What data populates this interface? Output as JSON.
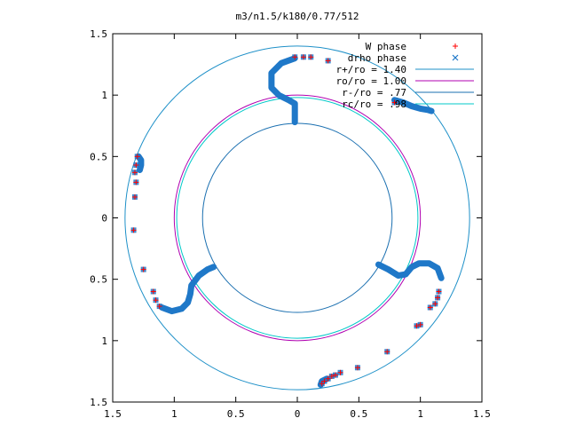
{
  "chart_data": {
    "type": "scatter",
    "title": "m3/n1.5/k180/0.77/512",
    "xlabel": "",
    "ylabel": "",
    "xlim": [
      -1.5,
      1.5
    ],
    "ylim": [
      -1.5,
      1.5
    ],
    "x_ticks": [
      {
        "value": -1.5,
        "label": "1.5"
      },
      {
        "value": -1.0,
        "label": "1"
      },
      {
        "value": -0.5,
        "label": "0.5"
      },
      {
        "value": 0.0,
        "label": "0"
      },
      {
        "value": 0.5,
        "label": "0.5"
      },
      {
        "value": 1.0,
        "label": "1"
      },
      {
        "value": 1.5,
        "label": "1.5"
      }
    ],
    "y_ticks": [
      {
        "value": 1.5,
        "label": "1.5"
      },
      {
        "value": 1.0,
        "label": "1"
      },
      {
        "value": 0.5,
        "label": "0.5"
      },
      {
        "value": 0.0,
        "label": "0"
      },
      {
        "value": -0.5,
        "label": "0.5"
      },
      {
        "value": -1.0,
        "label": "1"
      },
      {
        "value": -1.5,
        "label": "1.5"
      }
    ],
    "grid": false,
    "legend_position": "top-right",
    "circles": [
      {
        "name": "r+/ro = 1.40",
        "radius": 1.4,
        "color": "#1e90c8"
      },
      {
        "name": "ro/ro = 1.00",
        "radius": 1.0,
        "color": "#b000b0"
      },
      {
        "name": "r-/ro = .77",
        "radius": 0.77,
        "color": "#1a6fb0"
      },
      {
        "name": "rc/ro = .98",
        "radius": 0.98,
        "color": "#00c8c8"
      }
    ],
    "series": [
      {
        "name": "W phase",
        "marker": "plus",
        "color": "#ff0000",
        "points": [
          [
            -0.02,
            1.31
          ],
          [
            0.05,
            1.31
          ],
          [
            0.11,
            1.31
          ],
          [
            0.25,
            1.28
          ],
          [
            -1.3,
            0.5
          ],
          [
            -1.31,
            0.43
          ],
          [
            -1.32,
            0.37
          ],
          [
            -1.31,
            0.29
          ],
          [
            -1.32,
            0.17
          ],
          [
            -1.33,
            -0.1
          ],
          [
            -1.25,
            -0.42
          ],
          [
            -1.17,
            -0.6
          ],
          [
            -1.15,
            -0.67
          ],
          [
            -1.12,
            -0.72
          ],
          [
            0.79,
            0.94
          ],
          [
            1.15,
            -0.6
          ],
          [
            1.14,
            -0.65
          ],
          [
            1.12,
            -0.7
          ],
          [
            1.08,
            -0.73
          ],
          [
            1.0,
            -0.87
          ],
          [
            0.97,
            -0.88
          ],
          [
            0.73,
            -1.09
          ],
          [
            0.49,
            -1.22
          ],
          [
            0.35,
            -1.26
          ],
          [
            0.31,
            -1.28
          ],
          [
            0.28,
            -1.29
          ],
          [
            0.25,
            -1.31
          ],
          [
            0.22,
            -1.33
          ],
          [
            0.2,
            -1.35
          ]
        ]
      },
      {
        "name": "drho phase",
        "marker": "x",
        "color": "#1f78c8",
        "points": [
          [
            -0.02,
            1.31
          ],
          [
            0.05,
            1.31
          ],
          [
            0.11,
            1.31
          ],
          [
            0.25,
            1.28
          ],
          [
            -1.3,
            0.5
          ],
          [
            -1.31,
            0.43
          ],
          [
            -1.32,
            0.37
          ],
          [
            -1.31,
            0.29
          ],
          [
            -1.32,
            0.17
          ],
          [
            -1.33,
            -0.1
          ],
          [
            -1.25,
            -0.42
          ],
          [
            -1.17,
            -0.6
          ],
          [
            -1.15,
            -0.67
          ],
          [
            -1.12,
            -0.72
          ],
          [
            0.79,
            0.94
          ],
          [
            1.15,
            -0.6
          ],
          [
            1.14,
            -0.65
          ],
          [
            1.12,
            -0.7
          ],
          [
            1.08,
            -0.73
          ],
          [
            1.0,
            -0.87
          ],
          [
            0.97,
            -0.88
          ],
          [
            0.73,
            -1.09
          ],
          [
            0.49,
            -1.22
          ],
          [
            0.35,
            -1.26
          ],
          [
            0.31,
            -1.28
          ],
          [
            0.28,
            -1.29
          ],
          [
            0.25,
            -1.31
          ],
          [
            0.22,
            -1.33
          ],
          [
            0.2,
            -1.35
          ]
        ],
        "dense_curves": [
          [
            [
              -0.02,
              1.3
            ],
            [
              -0.13,
              1.26
            ],
            [
              -0.21,
              1.18
            ],
            [
              -0.21,
              1.06
            ],
            [
              -0.15,
              1.0
            ],
            [
              -0.07,
              0.96
            ],
            [
              -0.02,
              0.93
            ],
            [
              -0.02,
              0.86
            ],
            [
              -0.02,
              0.78
            ]
          ],
          [
            [
              0.79,
              0.96
            ],
            [
              0.86,
              0.94
            ],
            [
              0.93,
              0.91
            ],
            [
              1.0,
              0.89
            ],
            [
              1.06,
              0.88
            ],
            [
              1.09,
              0.87
            ]
          ],
          [
            [
              -1.29,
              0.5
            ],
            [
              -1.27,
              0.47
            ],
            [
              -1.27,
              0.43
            ],
            [
              -1.28,
              0.39
            ]
          ],
          [
            [
              -1.1,
              -0.73
            ],
            [
              -1.02,
              -0.76
            ],
            [
              -0.94,
              -0.74
            ],
            [
              -0.89,
              -0.69
            ],
            [
              -0.87,
              -0.62
            ],
            [
              -0.86,
              -0.55
            ],
            [
              -0.8,
              -0.47
            ],
            [
              -0.73,
              -0.42
            ],
            [
              -0.68,
              -0.4
            ]
          ],
          [
            [
              0.66,
              -0.38
            ],
            [
              0.74,
              -0.42
            ],
            [
              0.82,
              -0.47
            ],
            [
              0.88,
              -0.46
            ],
            [
              0.93,
              -0.4
            ],
            [
              0.99,
              -0.37
            ],
            [
              1.07,
              -0.37
            ],
            [
              1.14,
              -0.41
            ],
            [
              1.17,
              -0.49
            ]
          ],
          [
            [
              0.19,
              -1.36
            ],
            [
              0.2,
              -1.33
            ],
            [
              0.22,
              -1.32
            ],
            [
              0.24,
              -1.31
            ]
          ]
        ]
      }
    ]
  }
}
